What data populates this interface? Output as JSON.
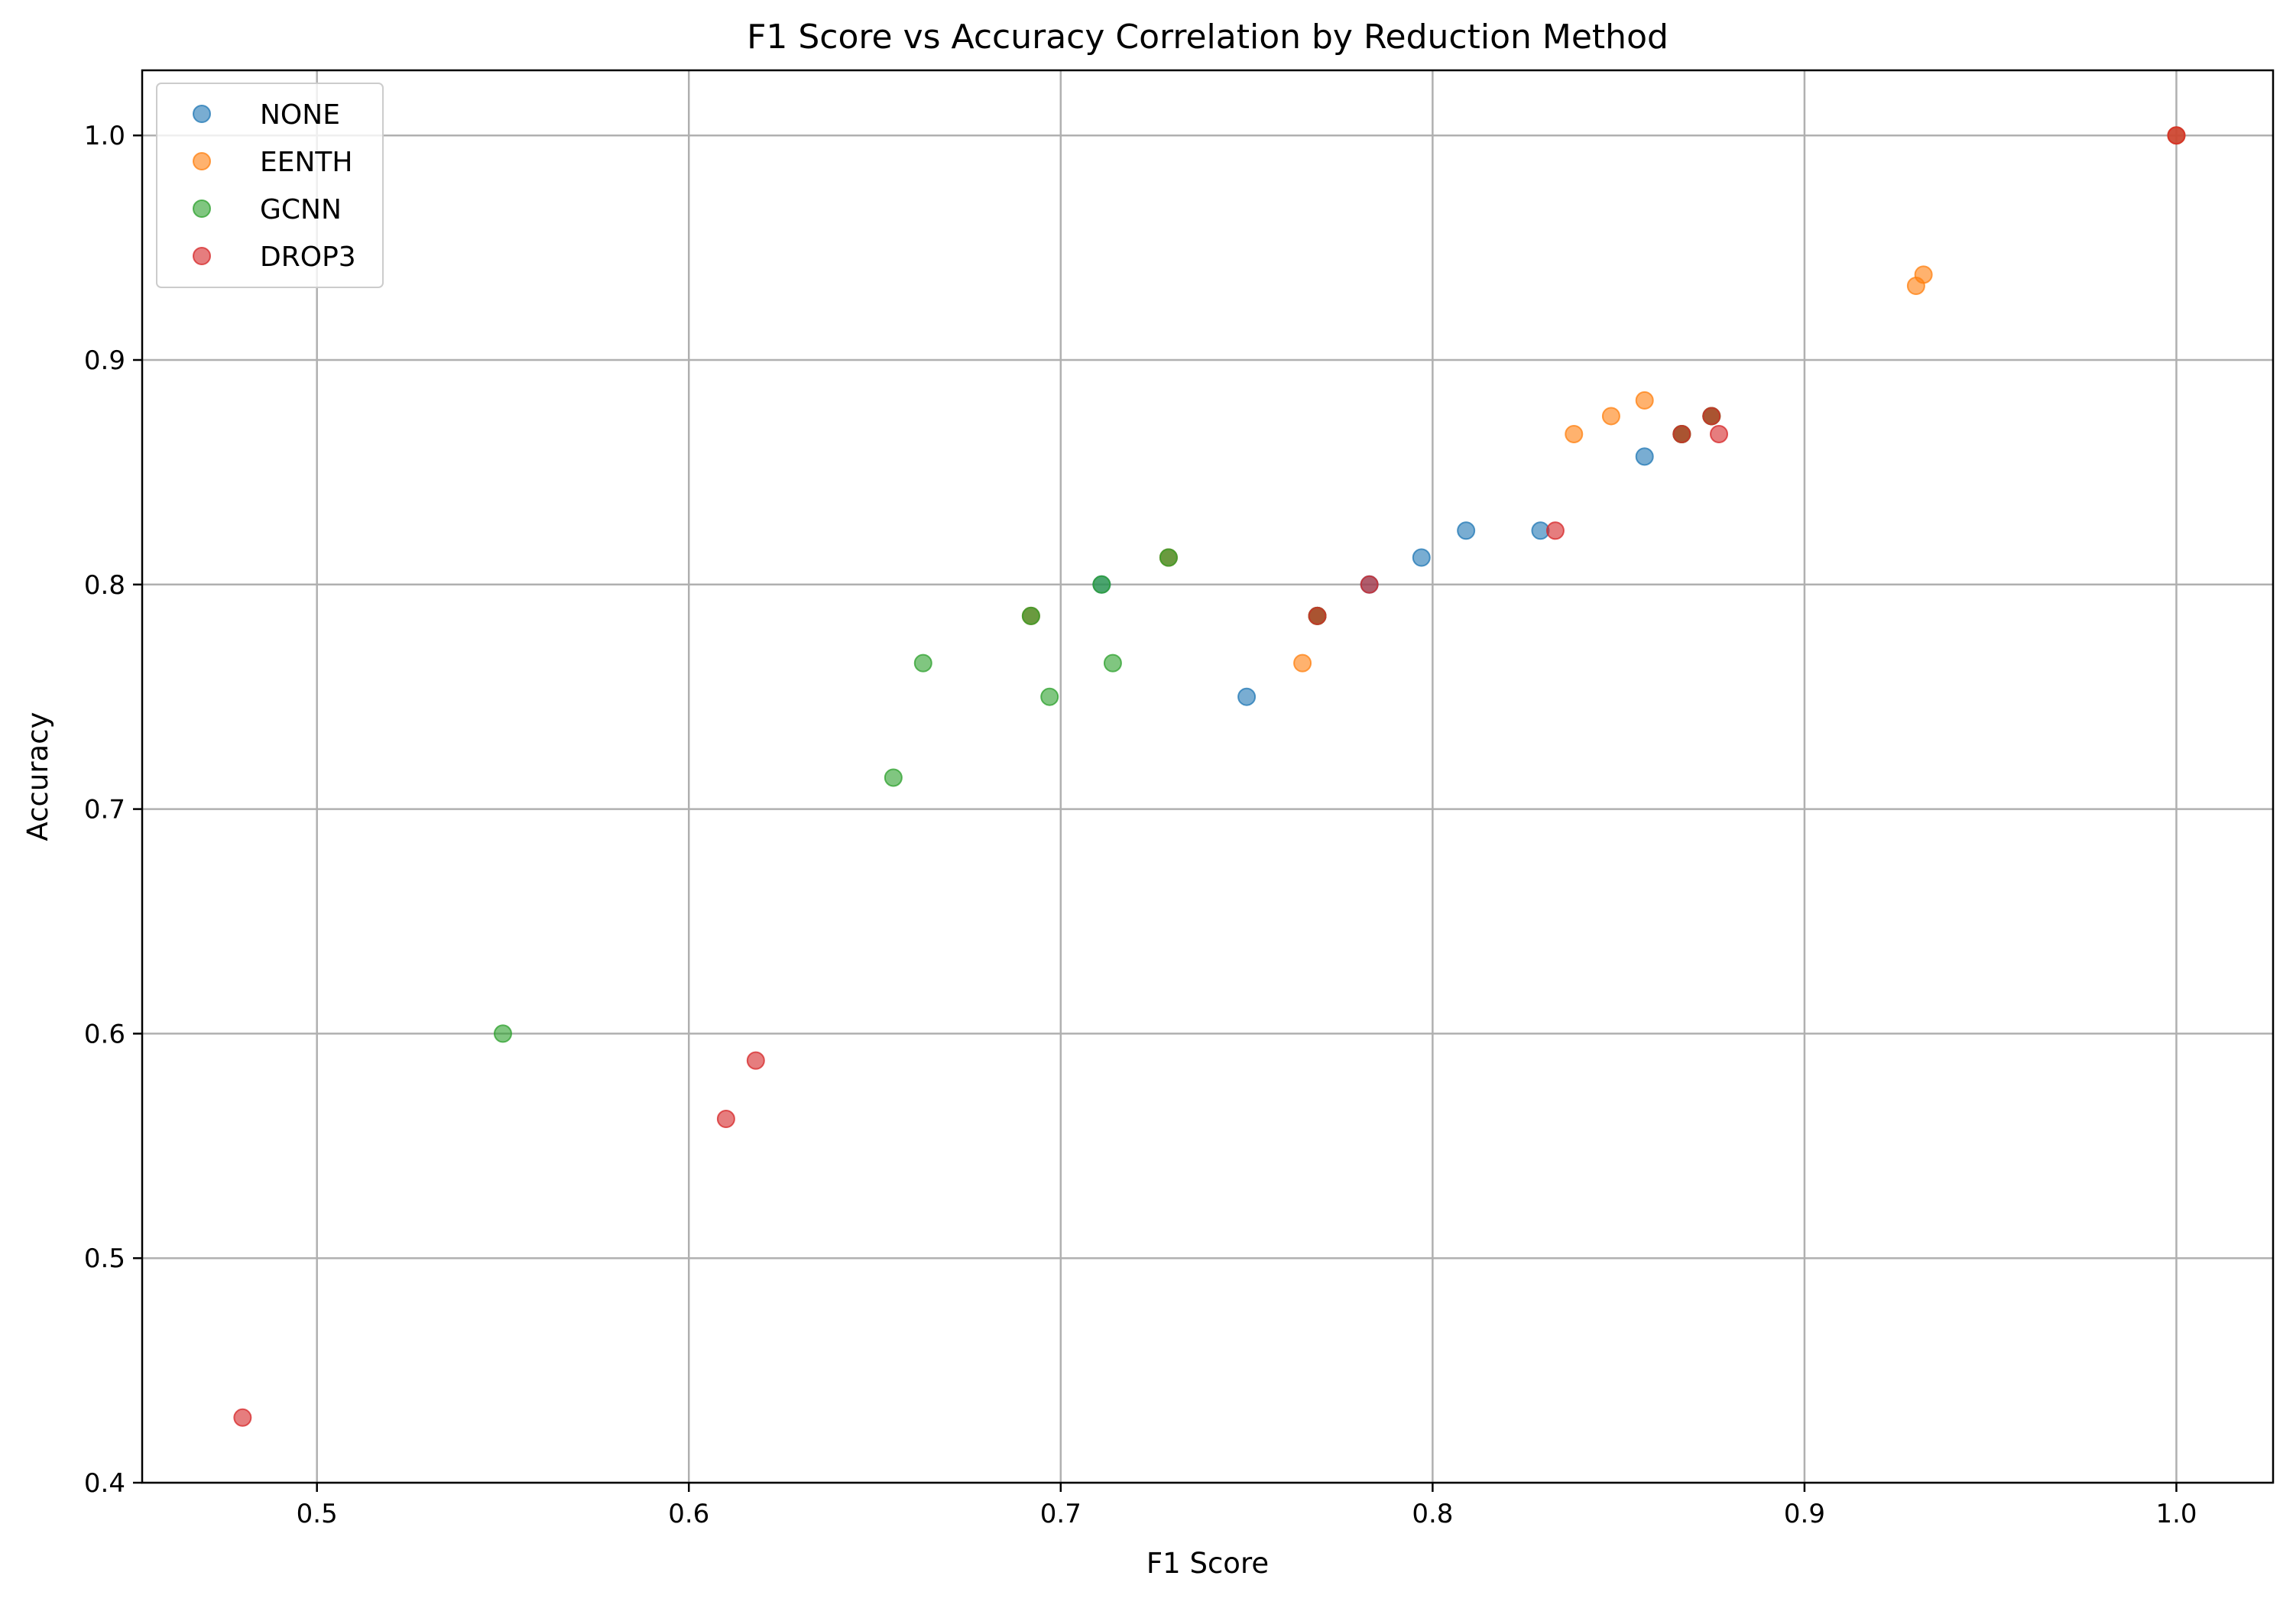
{
  "chart_data": {
    "type": "scatter",
    "title": "F1 Score vs Accuracy Correlation by Reduction Method",
    "xlabel": "F1 Score",
    "ylabel": "Accuracy",
    "xlim": [
      0.453,
      1.026
    ],
    "ylim": [
      0.4,
      1.029
    ],
    "xticks": [
      "0.5",
      "0.6",
      "0.7",
      "0.8",
      "0.9",
      "1.0"
    ],
    "yticks": [
      "0.4",
      "0.5",
      "0.6",
      "0.7",
      "0.8",
      "0.9",
      "1.0"
    ],
    "grid": true,
    "legend_position": "top-left",
    "series": [
      {
        "name": "NONE",
        "color": "#1f77b4",
        "points": [
          [
            0.75,
            0.75
          ],
          [
            0.797,
            0.812
          ],
          [
            0.809,
            0.824
          ],
          [
            0.829,
            0.824
          ],
          [
            0.857,
            0.857
          ],
          [
            0.692,
            0.786
          ],
          [
            0.711,
            0.8
          ],
          [
            0.729,
            0.812
          ],
          [
            0.867,
            0.867
          ],
          [
            0.875,
            0.875
          ],
          [
            0.769,
            0.786
          ],
          [
            0.783,
            0.8
          ],
          [
            1.0,
            1.0
          ]
        ]
      },
      {
        "name": "EENTH",
        "color": "#ff7f0e",
        "points": [
          [
            0.765,
            0.765
          ],
          [
            0.838,
            0.867
          ],
          [
            0.848,
            0.875
          ],
          [
            0.857,
            0.882
          ],
          [
            0.93,
            0.933
          ],
          [
            0.932,
            0.938
          ],
          [
            0.692,
            0.786
          ],
          [
            0.729,
            0.812
          ],
          [
            0.769,
            0.786
          ],
          [
            0.867,
            0.867
          ],
          [
            0.875,
            0.875
          ],
          [
            1.0,
            1.0
          ]
        ]
      },
      {
        "name": "GCNN",
        "color": "#2ca02c",
        "points": [
          [
            0.55,
            0.6
          ],
          [
            0.655,
            0.714
          ],
          [
            0.663,
            0.765
          ],
          [
            0.697,
            0.75
          ],
          [
            0.714,
            0.765
          ],
          [
            0.692,
            0.786
          ],
          [
            0.711,
            0.8
          ],
          [
            0.729,
            0.812
          ],
          [
            0.769,
            0.786
          ],
          [
            0.867,
            0.867
          ],
          [
            0.875,
            0.875
          ]
        ]
      },
      {
        "name": "DROP3",
        "color": "#d62728",
        "points": [
          [
            0.48,
            0.429
          ],
          [
            0.61,
            0.562
          ],
          [
            0.618,
            0.588
          ],
          [
            0.783,
            0.8
          ],
          [
            0.769,
            0.786
          ],
          [
            0.833,
            0.824
          ],
          [
            0.867,
            0.867
          ],
          [
            0.875,
            0.875
          ],
          [
            0.877,
            0.867
          ],
          [
            1.0,
            1.0
          ]
        ]
      }
    ]
  }
}
